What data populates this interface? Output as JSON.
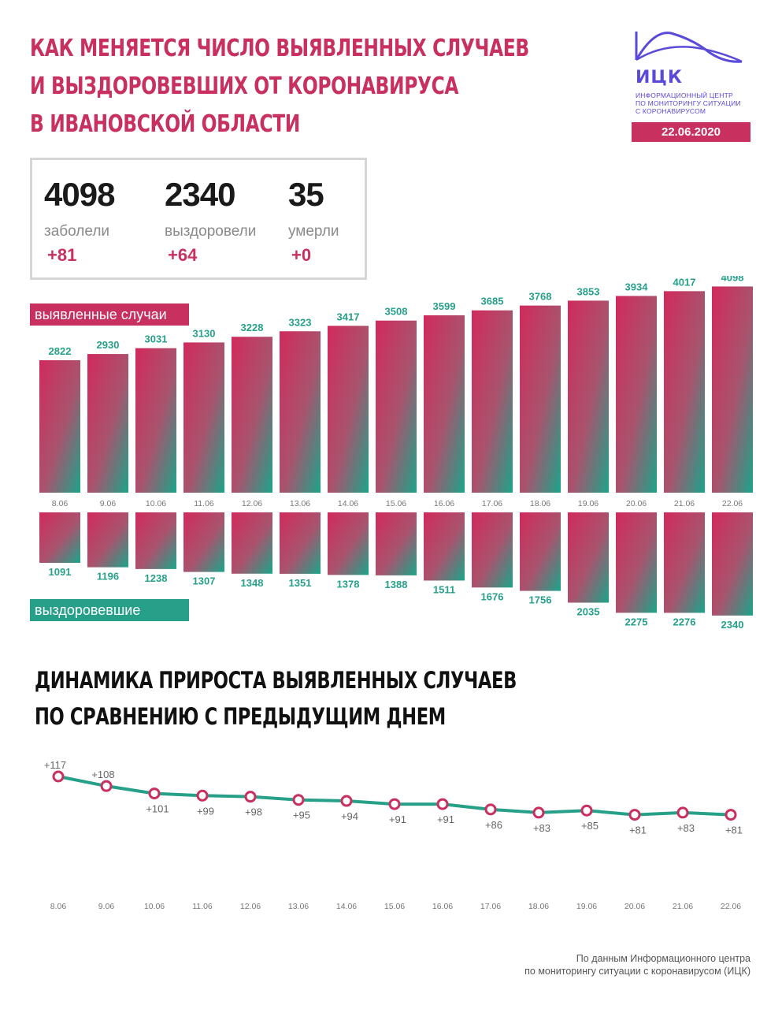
{
  "header": {
    "title_lines": [
      "Как меняется число выявленных случаев",
      "и выздоровевших от коронавируса",
      "в Ивановской области"
    ]
  },
  "logo": {
    "name": "ИЦК",
    "subtitle_lines": [
      "Информационный центр",
      "по мониторингу ситуации",
      "с коронавирусом"
    ],
    "color": "#5a4ad8"
  },
  "date": "22.06.2020",
  "stats": [
    {
      "value": "4098",
      "label": "заболели",
      "delta": "+81"
    },
    {
      "value": "2340",
      "label": "выздоровели",
      "delta": "+64"
    },
    {
      "value": "35",
      "label": "умерли",
      "delta": "+0"
    }
  ],
  "labels": {
    "cases": "выявленные случаи",
    "recovered": "выздоровевшие"
  },
  "subtitle_lines": [
    "Динамика прироста выявленных случаев",
    "по сравнению с предыдущим днем"
  ],
  "source_lines": [
    "По данным Информационного центра",
    "по мониторингу ситуации с коронавирусом (ИЦК)"
  ],
  "colors": {
    "accent": "#c8305f",
    "teal": "#27a08a",
    "line": "#27a08a",
    "marker": "#c8305f"
  },
  "chart_data": [
    {
      "type": "bar",
      "categories": [
        "8.06",
        "9.06",
        "10.06",
        "11.06",
        "12.06",
        "13.06",
        "14.06",
        "15.06",
        "16.06",
        "17.06",
        "18.06",
        "19.06",
        "20.06",
        "21.06",
        "22.06"
      ],
      "series": [
        {
          "name": "выявленные случаи",
          "values": [
            2822,
            2930,
            3031,
            3130,
            3228,
            3323,
            3417,
            3508,
            3599,
            3685,
            3768,
            3853,
            3934,
            4017,
            4098
          ]
        },
        {
          "name": "выздоровевшие",
          "values": [
            1091,
            1196,
            1238,
            1307,
            1348,
            1351,
            1378,
            1388,
            1511,
            1676,
            1756,
            2035,
            2275,
            2276,
            2340
          ]
        }
      ]
    },
    {
      "type": "line",
      "categories": [
        "8.06",
        "9.06",
        "10.06",
        "11.06",
        "12.06",
        "13.06",
        "14.06",
        "15.06",
        "16.06",
        "17.06",
        "18.06",
        "19.06",
        "20.06",
        "21.06",
        "22.06"
      ],
      "values": [
        117,
        108,
        101,
        99,
        98,
        95,
        94,
        91,
        91,
        86,
        83,
        85,
        81,
        83,
        81
      ],
      "value_labels": [
        "+117",
        "+108",
        "+101",
        "+99",
        "+98",
        "+95",
        "+94",
        "+91",
        "+91",
        "+86",
        "+83",
        "+85",
        "+81",
        "+83",
        "+81"
      ]
    }
  ]
}
